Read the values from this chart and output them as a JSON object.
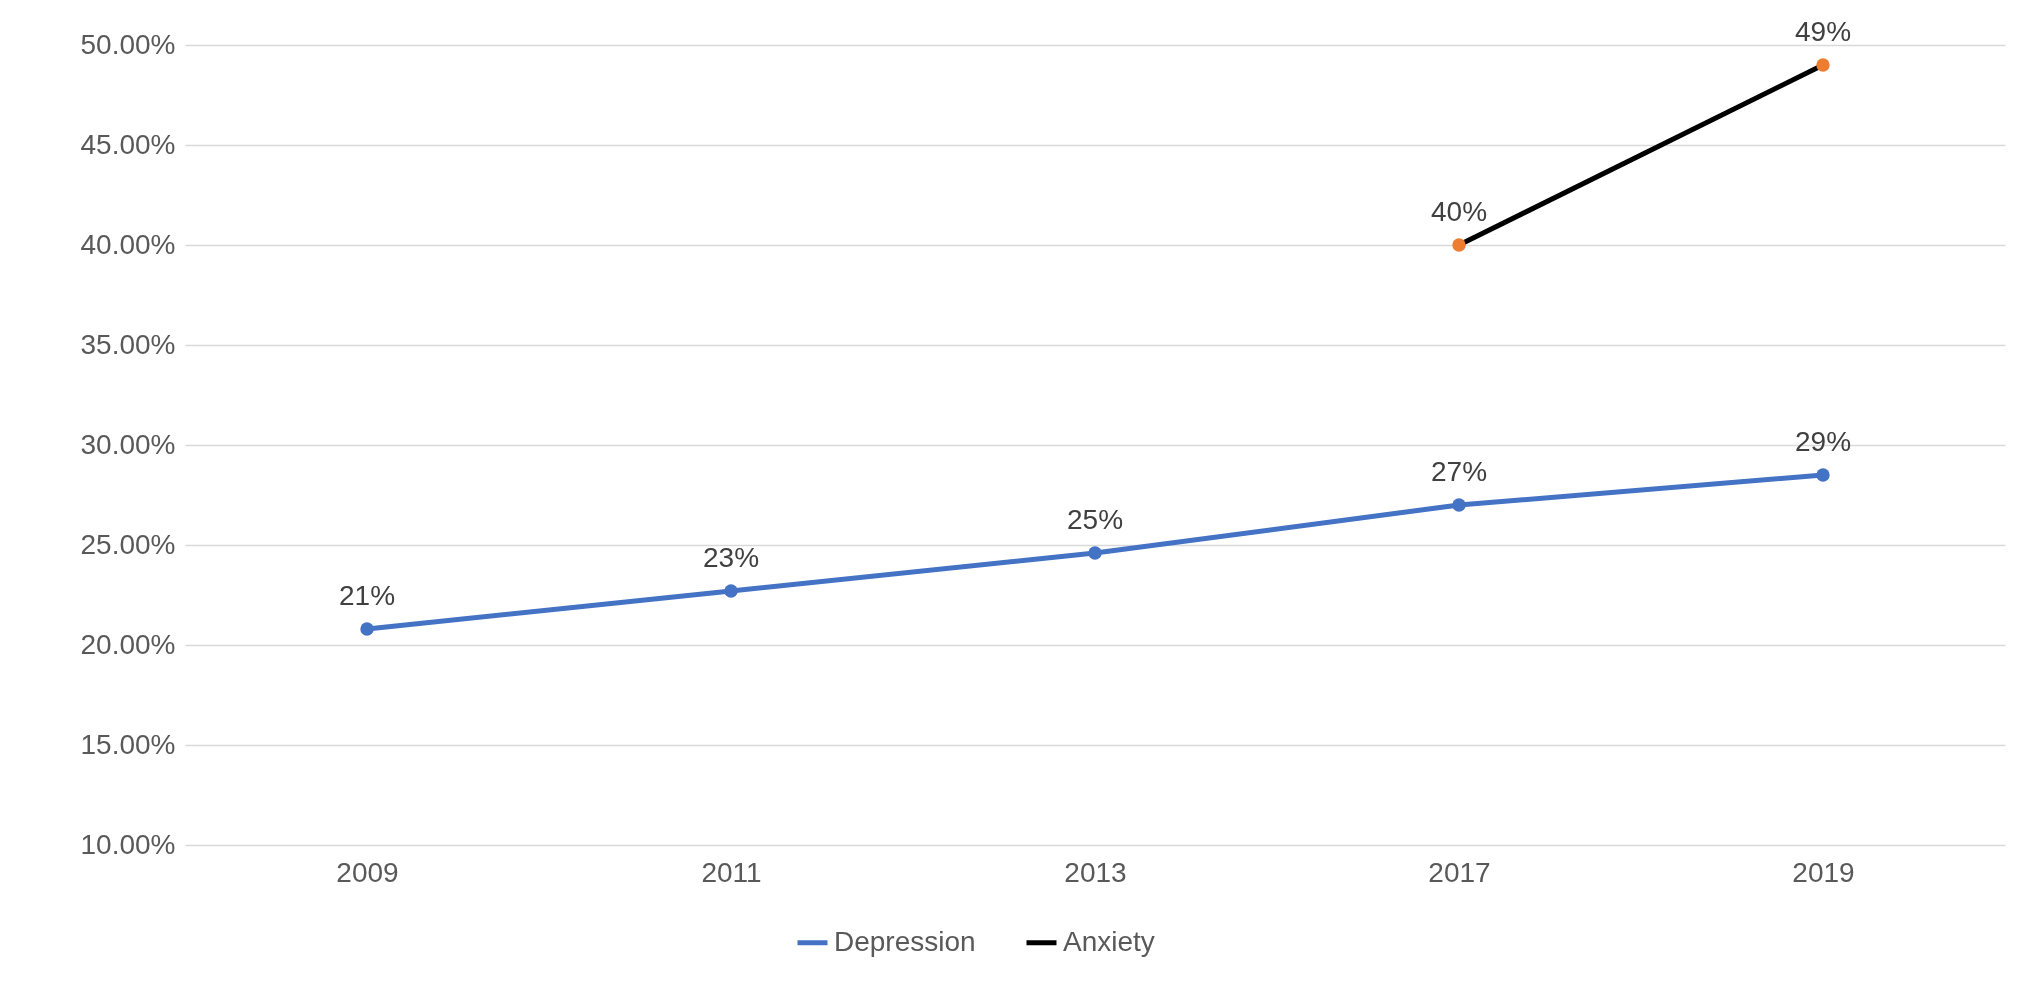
{
  "chart_data": {
    "type": "line",
    "categories": [
      "2009",
      "2011",
      "2013",
      "2017",
      "2019"
    ],
    "series": [
      {
        "name": "Depression",
        "color": "#4472c4",
        "values": [
          20.8,
          22.7,
          24.6,
          27.0,
          28.5
        ],
        "value_labels": [
          "21%",
          "23%",
          "25%",
          "27%",
          "29%"
        ]
      },
      {
        "name": "Anxiety",
        "color": "#000000",
        "colors": [
          null,
          null,
          null,
          "#ed7d31",
          "#ed7d31"
        ],
        "values": [
          null,
          null,
          null,
          40,
          49
        ],
        "value_labels": [
          null,
          null,
          null,
          "40%",
          "49%"
        ]
      }
    ],
    "ylim": [
      10,
      50
    ],
    "yticks": [
      {
        "value": 10,
        "label": "10.00%"
      },
      {
        "value": 15,
        "label": "15.00%"
      },
      {
        "value": 20,
        "label": "20.00%"
      },
      {
        "value": 25,
        "label": "25.00%"
      },
      {
        "value": 30,
        "label": "30.00%"
      },
      {
        "value": 35,
        "label": "35.00%"
      },
      {
        "value": 40,
        "label": "40.00%"
      },
      {
        "value": 45,
        "label": "45.00%"
      },
      {
        "value": 50,
        "label": "50.00%"
      }
    ],
    "grid": "y",
    "legend": "bottom",
    "marker": "circle",
    "line_style": "solid"
  }
}
